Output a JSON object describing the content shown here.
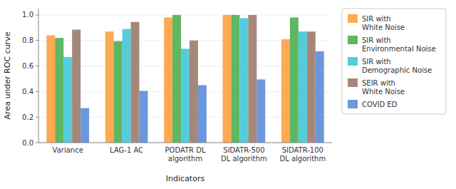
{
  "chart_data": {
    "type": "bar",
    "categories": [
      "Variance",
      "LAG-1 AC",
      "PODATR DL\nalgorithm",
      "SIDATR-500\nDL algorithm",
      "SIDATR-100\nDL algorithm"
    ],
    "series": [
      {
        "name": "SIR with\nWhite Noise",
        "color": "#FFA040",
        "values": [
          0.84,
          0.87,
          0.98,
          1.0,
          0.81
        ]
      },
      {
        "name": "SIR with\nEnvironmental Noise",
        "color": "#4CAF50",
        "values": [
          0.82,
          0.795,
          1.0,
          1.0,
          0.98
        ]
      },
      {
        "name": "SIR with\nDemographic Noise",
        "color": "#40C8D8",
        "values": [
          0.67,
          0.89,
          0.735,
          0.975,
          0.87
        ]
      },
      {
        "name": "SEIR with\nWhite Noise",
        "color": "#9B7B6B",
        "values": [
          0.885,
          0.945,
          0.8,
          1.0,
          0.87
        ]
      },
      {
        "name": "COVID ED",
        "color": "#5B8DD9",
        "values": [
          0.27,
          0.405,
          0.45,
          0.495,
          0.715
        ]
      }
    ],
    "xlabel": "Indicators",
    "ylabel": "Area under ROC curve",
    "ylim": [
      0,
      1.05
    ],
    "yticks": [
      {
        "value": 0,
        "label": "0.0"
      },
      0.2,
      0.4,
      0.6,
      0.8,
      {
        "value": 1,
        "label": "1.0"
      }
    ],
    "grid": true,
    "legend": "right"
  }
}
